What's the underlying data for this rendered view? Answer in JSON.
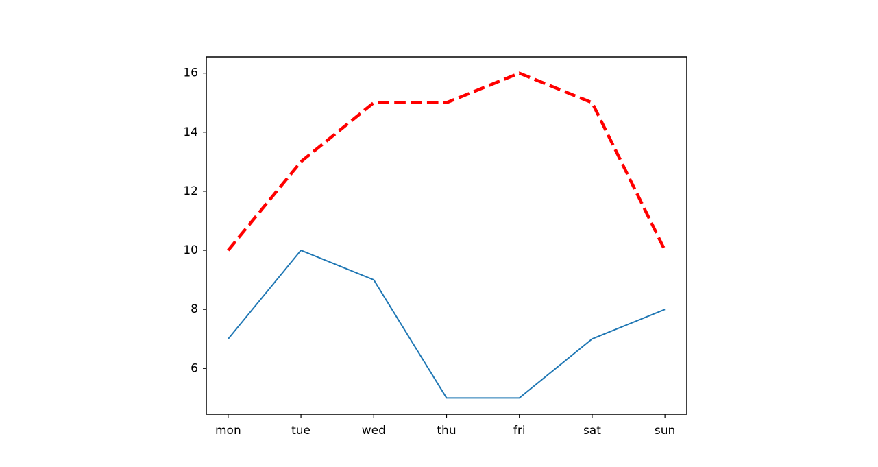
{
  "chart_data": {
    "type": "line",
    "categories": [
      "mon",
      "tue",
      "wed",
      "thu",
      "fri",
      "sat",
      "sun"
    ],
    "series": [
      {
        "color": "#1f77b4",
        "linestyle": "solid",
        "linewidth": 2,
        "values": [
          7,
          10,
          9,
          5,
          5,
          7,
          8
        ]
      },
      {
        "color": "#ff0000",
        "linestyle": "dashed",
        "linewidth": 4.5,
        "values": [
          10,
          13,
          15,
          15,
          16,
          15,
          10
        ]
      }
    ],
    "ylim": [
      4.45,
      16.55
    ],
    "yticks": [
      6,
      8,
      10,
      12,
      14,
      16
    ],
    "grid": false
  }
}
